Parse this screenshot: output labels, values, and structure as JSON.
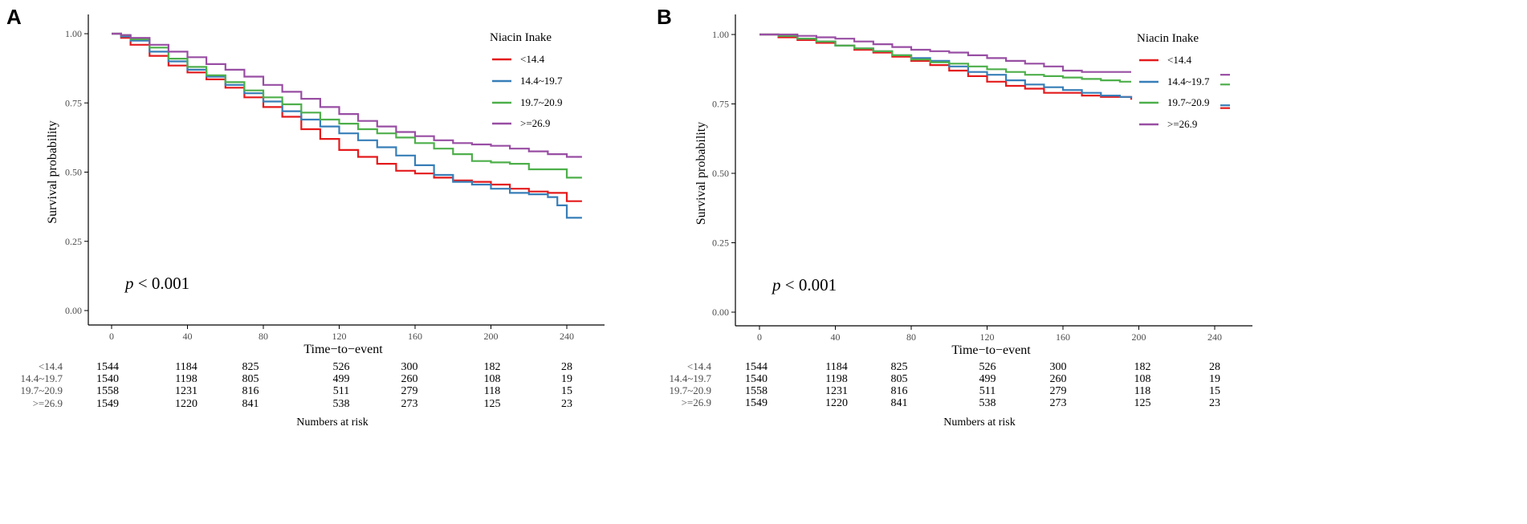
{
  "panels": [
    {
      "label": "A",
      "x_axis": {
        "label": "Time−to−event",
        "ticks": [
          0,
          40,
          80,
          120,
          160,
          200,
          240
        ],
        "range": [
          0,
          250
        ]
      },
      "y_axis": {
        "label": "Survival probability",
        "ticks": [
          "0.00",
          "0.25",
          "0.50",
          "0.75",
          "1.00"
        ],
        "range": [
          0,
          1
        ]
      },
      "pvalue": {
        "p": "p",
        "rest": " < 0.001"
      },
      "legend_title": "Niacin Inake",
      "risk_table_title": "Numbers at risk"
    },
    {
      "label": "B",
      "x_axis": {
        "label": "Time−to−event",
        "ticks": [
          0,
          40,
          80,
          120,
          160,
          200,
          240
        ],
        "range": [
          0,
          250
        ]
      },
      "y_axis": {
        "label": "Survival probability",
        "ticks": [
          "0.00",
          "0.25",
          "0.50",
          "0.75",
          "1.00"
        ],
        "range": [
          0,
          1
        ]
      },
      "pvalue": {
        "p": "p",
        "rest": " < 0.001"
      },
      "legend_title": "Niacin Inake",
      "risk_table_title": "Numbers at risk"
    }
  ],
  "colors": {
    "<14.4": "#e41a1c",
    "14.4~19.7": "#377eb8",
    "19.7~20.9": "#4daf4a",
    ">=26.9": "#984ea3"
  },
  "chart_data": [
    {
      "type": "line",
      "subtype": "kaplan-meier",
      "panel": "A",
      "xlabel": "Time−to−event",
      "ylabel": "Survival probability",
      "xlim": [
        0,
        250
      ],
      "ylim": [
        0,
        1
      ],
      "series": [
        {
          "name": "<14.4",
          "x": [
            0,
            5,
            10,
            20,
            30,
            40,
            50,
            60,
            70,
            80,
            90,
            100,
            110,
            120,
            130,
            140,
            150,
            160,
            170,
            180,
            190,
            200,
            210,
            220,
            230,
            240,
            248
          ],
          "y": [
            1.0,
            0.985,
            0.96,
            0.92,
            0.885,
            0.86,
            0.835,
            0.805,
            0.77,
            0.735,
            0.7,
            0.655,
            0.62,
            0.58,
            0.555,
            0.53,
            0.505,
            0.495,
            0.48,
            0.47,
            0.465,
            0.455,
            0.44,
            0.43,
            0.425,
            0.395,
            0.395
          ]
        },
        {
          "name": "14.4~19.7",
          "x": [
            0,
            5,
            10,
            20,
            30,
            40,
            50,
            60,
            70,
            80,
            90,
            100,
            110,
            120,
            130,
            140,
            150,
            160,
            170,
            180,
            190,
            200,
            210,
            220,
            230,
            235,
            240,
            248
          ],
          "y": [
            1.0,
            0.99,
            0.975,
            0.935,
            0.9,
            0.87,
            0.845,
            0.815,
            0.785,
            0.755,
            0.72,
            0.69,
            0.665,
            0.64,
            0.615,
            0.59,
            0.56,
            0.525,
            0.49,
            0.465,
            0.455,
            0.44,
            0.425,
            0.42,
            0.41,
            0.38,
            0.335,
            0.335
          ]
        },
        {
          "name": "19.7~20.9",
          "x": [
            0,
            5,
            10,
            20,
            30,
            40,
            50,
            60,
            70,
            80,
            90,
            100,
            110,
            120,
            130,
            140,
            150,
            160,
            170,
            180,
            190,
            200,
            210,
            220,
            230,
            240,
            248
          ],
          "y": [
            1.0,
            0.995,
            0.98,
            0.95,
            0.91,
            0.88,
            0.85,
            0.825,
            0.795,
            0.77,
            0.745,
            0.715,
            0.69,
            0.675,
            0.655,
            0.64,
            0.625,
            0.605,
            0.585,
            0.565,
            0.54,
            0.535,
            0.53,
            0.51,
            0.51,
            0.48,
            0.48
          ]
        },
        {
          "name": ">=26.9",
          "x": [
            0,
            5,
            10,
            20,
            30,
            40,
            50,
            60,
            70,
            80,
            90,
            100,
            110,
            120,
            130,
            140,
            150,
            160,
            170,
            180,
            190,
            200,
            210,
            220,
            230,
            240,
            248
          ],
          "y": [
            1.0,
            0.995,
            0.985,
            0.96,
            0.935,
            0.915,
            0.89,
            0.87,
            0.845,
            0.815,
            0.79,
            0.765,
            0.735,
            0.71,
            0.685,
            0.665,
            0.645,
            0.63,
            0.615,
            0.605,
            0.6,
            0.595,
            0.585,
            0.575,
            0.565,
            0.555,
            0.555
          ]
        }
      ],
      "p_value": "p < 0.001",
      "legend": {
        "title": "Niacin Inake",
        "entries": [
          "<14.4",
          "14.4~19.7",
          "19.7~20.9",
          ">=26.9"
        ],
        "placement": "top-right"
      },
      "risk_table": {
        "title": "Numbers at risk",
        "times": [
          0,
          40,
          80,
          120,
          160,
          200,
          240
        ],
        "rows": [
          {
            "group": "<14.4",
            "counts": [
              1544,
              1184,
              825,
              526,
              300,
              182,
              28
            ]
          },
          {
            "group": "14.4~19.7",
            "counts": [
              1540,
              1198,
              805,
              499,
              260,
              108,
              19
            ]
          },
          {
            "group": "19.7~20.9",
            "counts": [
              1558,
              1231,
              816,
              511,
              279,
              118,
              15
            ]
          },
          {
            "group": ">=26.9",
            "counts": [
              1549,
              1220,
              841,
              538,
              273,
              125,
              23
            ]
          }
        ]
      }
    },
    {
      "type": "line",
      "subtype": "kaplan-meier",
      "panel": "B",
      "xlabel": "Time−to−event",
      "ylabel": "Survival probability",
      "xlim": [
        0,
        250
      ],
      "ylim": [
        0,
        1
      ],
      "series": [
        {
          "name": "<14.4",
          "x": [
            0,
            10,
            20,
            30,
            40,
            50,
            60,
            70,
            80,
            90,
            100,
            110,
            120,
            130,
            140,
            150,
            160,
            170,
            180,
            190,
            196
          ],
          "y": [
            1.0,
            0.99,
            0.98,
            0.97,
            0.96,
            0.945,
            0.935,
            0.92,
            0.905,
            0.89,
            0.87,
            0.85,
            0.83,
            0.815,
            0.805,
            0.79,
            0.79,
            0.78,
            0.775,
            0.775,
            0.765
          ]
        },
        {
          "name": "14.4~19.7",
          "x": [
            0,
            10,
            20,
            30,
            40,
            50,
            60,
            70,
            80,
            90,
            100,
            110,
            120,
            130,
            140,
            150,
            160,
            170,
            180,
            190,
            196
          ],
          "y": [
            1.0,
            0.995,
            0.985,
            0.975,
            0.96,
            0.95,
            0.94,
            0.925,
            0.915,
            0.905,
            0.885,
            0.865,
            0.855,
            0.835,
            0.82,
            0.81,
            0.8,
            0.79,
            0.78,
            0.775,
            0.77
          ]
        },
        {
          "name": "19.7~20.9",
          "x": [
            0,
            10,
            20,
            30,
            40,
            50,
            60,
            70,
            80,
            90,
            100,
            110,
            120,
            130,
            140,
            150,
            160,
            170,
            180,
            190,
            196
          ],
          "y": [
            1.0,
            0.995,
            0.985,
            0.975,
            0.96,
            0.95,
            0.94,
            0.925,
            0.91,
            0.9,
            0.895,
            0.885,
            0.875,
            0.865,
            0.855,
            0.85,
            0.845,
            0.84,
            0.835,
            0.83,
            0.83
          ]
        },
        {
          "name": ">=26.9",
          "x": [
            0,
            10,
            20,
            30,
            40,
            50,
            60,
            70,
            80,
            90,
            100,
            110,
            120,
            130,
            140,
            150,
            160,
            170,
            180,
            190,
            196
          ],
          "y": [
            1.0,
            1.0,
            0.995,
            0.99,
            0.985,
            0.975,
            0.965,
            0.955,
            0.945,
            0.94,
            0.935,
            0.925,
            0.915,
            0.905,
            0.895,
            0.885,
            0.87,
            0.865,
            0.865,
            0.865,
            0.865
          ]
        }
      ],
      "p_value": "p < 0.001",
      "legend": {
        "title": "Niacin Inake",
        "entries": [
          "<14.4",
          "14.4~19.7",
          "19.7~20.9",
          ">=26.9"
        ],
        "placement": "top-right"
      },
      "risk_table": {
        "title": "Numbers at risk",
        "times": [
          0,
          40,
          80,
          120,
          160,
          200,
          240
        ],
        "rows": [
          {
            "group": "<14.4",
            "counts": [
              1544,
              1184,
              825,
              526,
              300,
              182,
              28
            ]
          },
          {
            "group": "14.4~19.7",
            "counts": [
              1540,
              1198,
              805,
              499,
              260,
              108,
              19
            ]
          },
          {
            "group": "19.7~20.9",
            "counts": [
              1558,
              1231,
              816,
              511,
              279,
              118,
              15
            ]
          },
          {
            "group": ">=26.9",
            "counts": [
              1549,
              1220,
              841,
              538,
              273,
              125,
              23
            ]
          }
        ]
      }
    }
  ]
}
